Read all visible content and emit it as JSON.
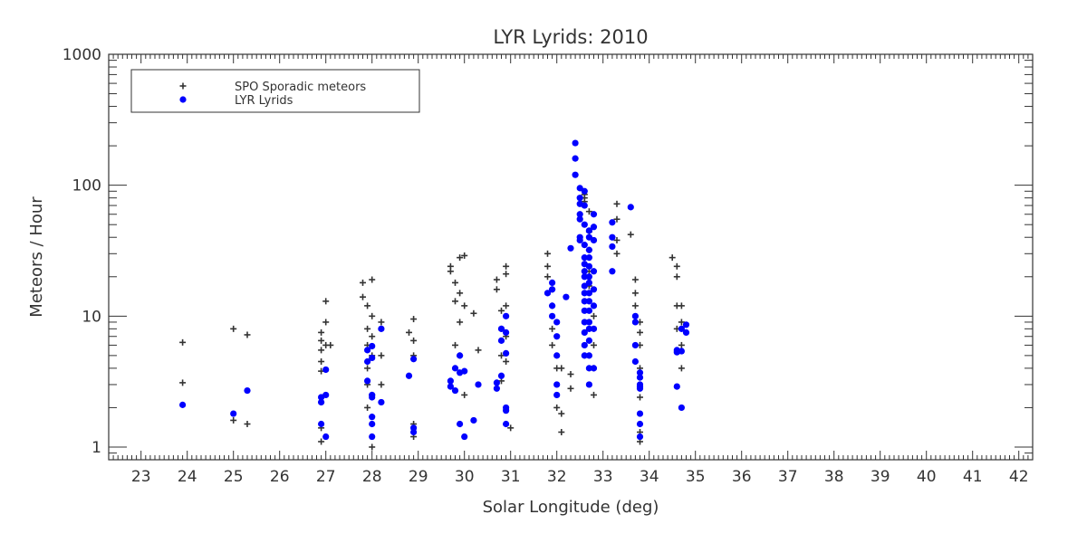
{
  "chart_data": {
    "type": "scatter",
    "title": "LYR Lyrids: 2010",
    "xlabel": "Solar Longitude (deg)",
    "ylabel": "Meteors / Hour",
    "xlim": [
      22.3,
      42.3
    ],
    "ylim": [
      0.8,
      1000
    ],
    "y_scale": "log",
    "x_ticks": [
      "23",
      "24",
      "25",
      "26",
      "27",
      "28",
      "29",
      "30",
      "31",
      "32",
      "33",
      "34",
      "35",
      "36",
      "37",
      "38",
      "39",
      "40",
      "41",
      "42"
    ],
    "y_ticks": [
      "1",
      "10",
      "100",
      "1000"
    ],
    "legend_position": "top-left",
    "series": [
      {
        "name": "SPO Sporadic meteors",
        "marker": "plus",
        "color": "#333333",
        "x": [
          23.9,
          23.9,
          25.0,
          25.0,
          25.3,
          25.3,
          26.9,
          26.9,
          26.9,
          26.9,
          26.9,
          26.9,
          26.9,
          26.9,
          27.0,
          27.0,
          27.0,
          27.1,
          27.8,
          27.8,
          27.9,
          27.9,
          27.9,
          27.9,
          27.9,
          27.9,
          28.0,
          28.0,
          28.0,
          28.0,
          28.0,
          28.0,
          28.2,
          28.2,
          28.2,
          28.8,
          28.9,
          28.9,
          28.9,
          28.9,
          28.9,
          29.7,
          29.7,
          29.8,
          29.8,
          29.8,
          29.9,
          29.9,
          29.9,
          29.9,
          30.0,
          30.0,
          30.0,
          30.2,
          30.3,
          30.7,
          30.7,
          30.8,
          30.8,
          30.8,
          30.8,
          30.9,
          30.9,
          30.9,
          30.9,
          30.9,
          31.0,
          31.8,
          31.8,
          31.8,
          31.9,
          31.9,
          31.9,
          31.9,
          32.0,
          32.0,
          32.1,
          32.1,
          32.1,
          32.3,
          32.3,
          32.6,
          32.6,
          32.6,
          32.7,
          32.7,
          32.7,
          32.7,
          32.7,
          32.8,
          32.8,
          32.8,
          32.8,
          33.3,
          33.3,
          33.3,
          33.3,
          33.6,
          33.7,
          33.7,
          33.7,
          33.8,
          33.8,
          33.8,
          33.8,
          33.8,
          33.8,
          33.8,
          33.8,
          33.8,
          34.5,
          34.6,
          34.6,
          34.6,
          34.6,
          34.7,
          34.7,
          34.7,
          34.7
        ],
        "y": [
          6.3,
          3.1,
          8,
          1.6,
          7.2,
          1.5,
          7.5,
          6.5,
          5.5,
          4.5,
          3.8,
          2.2,
          1.4,
          1.1,
          13,
          9,
          6,
          6,
          18,
          14,
          12,
          8,
          6,
          4,
          3,
          2,
          19,
          10,
          7,
          5,
          2.5,
          1,
          9,
          5,
          3,
          7.5,
          9.5,
          6.5,
          5,
          1.5,
          1.2,
          24,
          22,
          18,
          13,
          6,
          28,
          15,
          9,
          5,
          29,
          12,
          2.5,
          10.5,
          5.5,
          19,
          16,
          11,
          8,
          5,
          3.2,
          24,
          21,
          12,
          7,
          4.5,
          1.4,
          30,
          24,
          20,
          16,
          12,
          8,
          6,
          4,
          2,
          4,
          1.8,
          1.3,
          3.6,
          2.8,
          85,
          75,
          80,
          63,
          44,
          32,
          22,
          17,
          10,
          6,
          4,
          2.5,
          72,
          55,
          38,
          30,
          42,
          19,
          15,
          12,
          9,
          7.5,
          6,
          4,
          3,
          2.4,
          1.3,
          1.2,
          1.1,
          28,
          24,
          20,
          12,
          8,
          12,
          9,
          6,
          4
        ]
      },
      {
        "name": "LYR Lyrids",
        "marker": "dot",
        "color": "#0000ff",
        "x": [
          23.9,
          25.0,
          25.3,
          26.9,
          26.9,
          26.9,
          27.0,
          27.0,
          27.0,
          27.9,
          27.9,
          27.9,
          28.0,
          28.0,
          28.0,
          28.0,
          28.0,
          28.0,
          28.0,
          28.2,
          28.2,
          28.8,
          28.9,
          28.9,
          28.9,
          29.7,
          29.7,
          29.8,
          29.8,
          29.9,
          29.9,
          29.9,
          30.0,
          30.0,
          30.2,
          30.3,
          30.7,
          30.7,
          30.8,
          30.8,
          30.8,
          30.9,
          30.9,
          30.9,
          30.9,
          30.9,
          30.9,
          31.8,
          31.9,
          31.9,
          31.9,
          31.9,
          32.0,
          32.0,
          32.0,
          32.0,
          32.0,
          32.2,
          32.3,
          32.4,
          32.4,
          32.4,
          32.5,
          32.5,
          32.5,
          32.5,
          32.5,
          32.5,
          32.5,
          32.6,
          32.6,
          32.6,
          32.6,
          32.6,
          32.6,
          32.6,
          32.6,
          32.6,
          32.6,
          32.6,
          32.6,
          32.6,
          32.6,
          32.6,
          32.6,
          32.7,
          32.7,
          32.7,
          32.7,
          32.7,
          32.7,
          32.7,
          32.7,
          32.7,
          32.7,
          32.7,
          32.7,
          32.7,
          32.7,
          32.7,
          32.7,
          32.8,
          32.8,
          32.8,
          32.8,
          32.8,
          32.8,
          32.8,
          32.8,
          33.2,
          33.2,
          33.2,
          33.2,
          33.6,
          33.7,
          33.7,
          33.7,
          33.7,
          33.8,
          33.8,
          33.8,
          33.8,
          33.8,
          33.8,
          33.8,
          33.8,
          34.6,
          34.6,
          34.6,
          34.7,
          34.7,
          34.7,
          34.8,
          34.8
        ],
        "y": [
          2.1,
          1.8,
          2.7,
          2.4,
          2.2,
          1.5,
          1.2,
          3.9,
          2.5,
          5.5,
          4.5,
          3.2,
          5.9,
          4.8,
          2.5,
          2.4,
          1.7,
          1.5,
          1.2,
          8,
          2.2,
          3.5,
          4.7,
          1.4,
          1.3,
          3.2,
          2.9,
          4,
          2.7,
          5,
          3.7,
          1.5,
          3.8,
          1.2,
          1.6,
          3,
          3.1,
          2.8,
          8,
          6.5,
          3.5,
          10,
          7.5,
          5.2,
          2,
          1.9,
          1.5,
          15,
          18,
          16,
          12,
          10,
          9,
          7,
          5,
          3,
          2.5,
          14,
          33,
          210,
          160,
          120,
          95,
          80,
          72,
          60,
          55,
          40,
          38,
          90,
          70,
          50,
          35,
          28,
          25,
          22,
          20,
          17,
          15,
          13,
          11,
          9,
          7.5,
          6,
          5,
          45,
          40,
          32,
          28,
          24,
          20,
          18,
          15,
          13,
          11,
          9,
          8,
          6.5,
          5,
          4,
          3,
          60,
          48,
          38,
          22,
          16,
          12,
          8,
          4,
          52,
          40,
          34,
          22,
          68,
          10,
          9,
          6,
          4.5,
          3.7,
          3.4,
          3,
          2.9,
          2.8,
          1.8,
          1.5,
          1.2,
          5.5,
          5.3,
          2.9,
          2,
          5.4,
          8,
          7.5,
          8.6
        ]
      }
    ]
  }
}
